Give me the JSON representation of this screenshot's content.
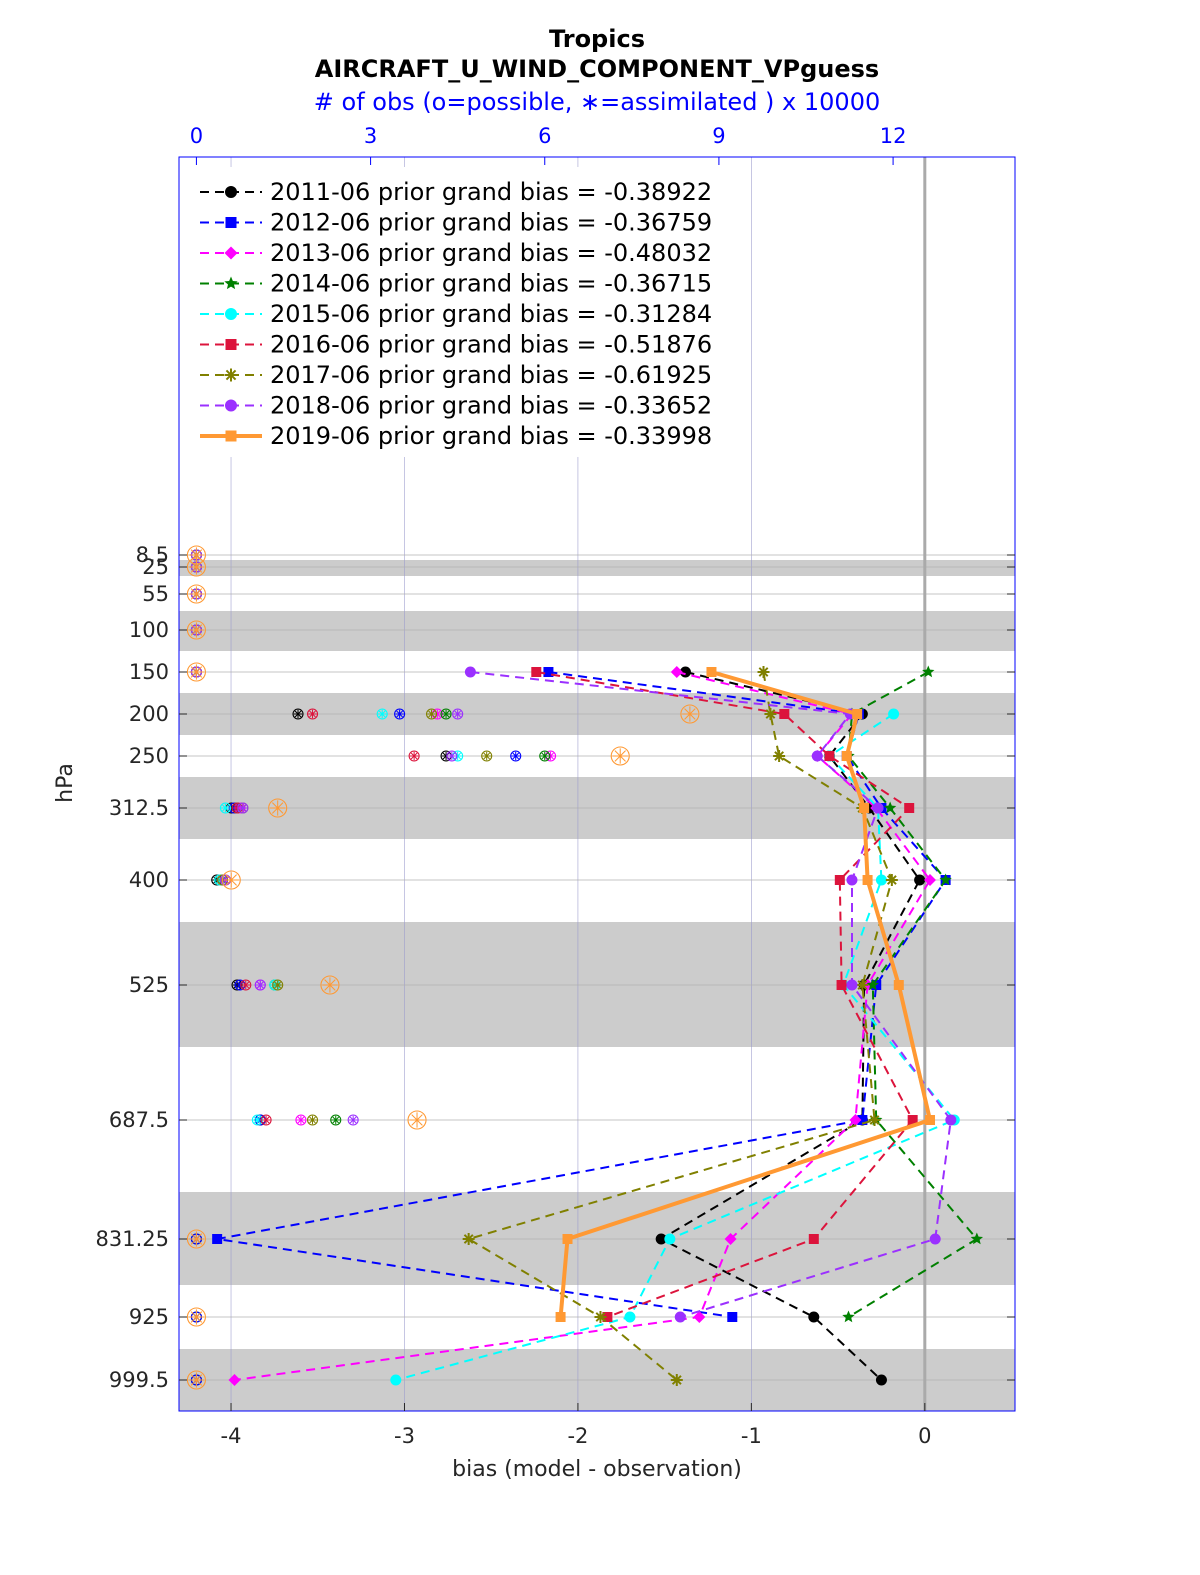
{
  "chart_data": {
    "type": "line",
    "title": "Tropics",
    "subtitle": "AIRCRAFT_U_WIND_COMPONENT_VPguess",
    "top_axis_label": "# of obs (o=possible, ∗=assimilated ) x 10000",
    "xlabel": "bias (model - observation)",
    "ylabel": "hPa",
    "xlim": [
      -4.3,
      0.52
    ],
    "x_ticks": [
      "-4",
      "-3",
      "-2",
      "-1",
      "0"
    ],
    "top_xlim": [
      -0.3,
      14.1
    ],
    "top_ticks": [
      "0",
      "3",
      "6",
      "9",
      "12"
    ],
    "levels": [
      "8.5",
      "25",
      "55",
      "100",
      "150",
      "200",
      "250",
      "312.5",
      "400",
      "525",
      "687.5",
      "831.25",
      "925",
      "999.5"
    ],
    "grid": true,
    "legend_position": "top-left",
    "series": [
      {
        "name": "2011-06 prior grand bias = -0.38922",
        "color": "#000000",
        "marker": "circle",
        "points": [
          [
            "150",
            -1.38
          ],
          [
            "200",
            -0.36
          ],
          [
            "250",
            -0.55
          ],
          [
            "312.5",
            -0.32
          ],
          [
            "400",
            -0.03
          ],
          [
            "525",
            -0.35
          ],
          [
            "687.5",
            -0.36
          ],
          [
            "831.25",
            -1.52
          ],
          [
            "925",
            -0.64
          ],
          [
            "999.5",
            -0.25
          ]
        ]
      },
      {
        "name": "2012-06 prior grand bias = -0.36759",
        "color": "#0000ff",
        "marker": "square",
        "points": [
          [
            "150",
            -2.17
          ],
          [
            "200",
            -0.38
          ],
          [
            "250",
            -0.45
          ],
          [
            "312.5",
            -0.25
          ],
          [
            "400",
            0.12
          ],
          [
            "525",
            -0.28
          ],
          [
            "687.5",
            -0.36
          ],
          [
            "831.25",
            -4.08
          ],
          [
            "925",
            -1.11
          ]
        ]
      },
      {
        "name": "2013-06 prior grand bias = -0.48032",
        "color": "#ff00ff",
        "marker": "diamond",
        "points": [
          [
            "150",
            -1.43
          ],
          [
            "200",
            -0.42
          ],
          [
            "250",
            -0.62
          ],
          [
            "312.5",
            -0.28
          ],
          [
            "400",
            0.03
          ],
          [
            "525",
            -0.33
          ],
          [
            "687.5",
            -0.4
          ],
          [
            "831.25",
            -1.12
          ],
          [
            "925",
            -1.3
          ],
          [
            "999.5",
            -3.98
          ]
        ]
      },
      {
        "name": "2014-06 prior grand bias = -0.36715",
        "color": "#008000",
        "marker": "star",
        "points": [
          [
            "150",
            0.02
          ],
          [
            "200",
            -0.42
          ],
          [
            "250",
            -0.44
          ],
          [
            "312.5",
            -0.2
          ],
          [
            "400",
            0.12
          ],
          [
            "525",
            -0.3
          ],
          [
            "687.5",
            -0.28
          ],
          [
            "831.25",
            0.3
          ],
          [
            "925",
            -0.44
          ]
        ]
      },
      {
        "name": "2015-06 prior grand bias = -0.31284",
        "color": "#00ffff",
        "marker": "circle",
        "points": [
          [
            "200",
            -0.18
          ],
          [
            "250",
            -0.55
          ],
          [
            "312.5",
            -0.27
          ],
          [
            "400",
            -0.25
          ],
          [
            "525",
            -0.47
          ],
          [
            "687.5",
            0.17
          ],
          [
            "831.25",
            -1.47
          ],
          [
            "925",
            -1.7
          ],
          [
            "999.5",
            -3.05
          ]
        ]
      },
      {
        "name": "2016-06 prior grand bias = -0.51876",
        "color": "#dc143c",
        "marker": "square",
        "points": [
          [
            "150",
            -2.24
          ],
          [
            "200",
            -0.81
          ],
          [
            "250",
            -0.55
          ],
          [
            "312.5",
            -0.09
          ],
          [
            "400",
            -0.49
          ],
          [
            "525",
            -0.48
          ],
          [
            "687.5",
            -0.07
          ],
          [
            "831.25",
            -0.64
          ],
          [
            "925",
            -1.83
          ]
        ]
      },
      {
        "name": "2017-06 prior grand bias = -0.61925",
        "color": "#808000",
        "marker": "asterisk",
        "points": [
          [
            "150",
            -0.93
          ],
          [
            "200",
            -0.89
          ],
          [
            "250",
            -0.84
          ],
          [
            "312.5",
            -0.36
          ],
          [
            "400",
            -0.19
          ],
          [
            "525",
            -0.36
          ],
          [
            "687.5",
            -0.29
          ],
          [
            "831.25",
            -2.63
          ],
          [
            "925",
            -1.87
          ],
          [
            "999.5",
            -1.43
          ]
        ]
      },
      {
        "name": "2018-06 prior grand bias = -0.33652",
        "color": "#9b30ff",
        "marker": "circle",
        "points": [
          [
            "150",
            -2.62
          ],
          [
            "200",
            -0.43
          ],
          [
            "250",
            -0.62
          ],
          [
            "312.5",
            -0.27
          ],
          [
            "400",
            -0.42
          ],
          [
            "525",
            -0.42
          ],
          [
            "687.5",
            0.15
          ],
          [
            "831.25",
            0.06
          ],
          [
            "925",
            -1.41
          ]
        ]
      },
      {
        "name": "2019-06 prior grand bias = -0.33998",
        "color": "#ff9933",
        "marker": "square",
        "bold": true,
        "points": [
          [
            "150",
            -1.23
          ],
          [
            "200",
            -0.39
          ],
          [
            "250",
            -0.45
          ],
          [
            "312.5",
            -0.35
          ],
          [
            "400",
            -0.33
          ],
          [
            "525",
            -0.15
          ],
          [
            "687.5",
            0.03
          ],
          [
            "831.25",
            -2.06
          ],
          [
            "925",
            -2.1
          ]
        ]
      }
    ],
    "obs_counts": [
      {
        "series": "2011-06",
        "color": "#000000",
        "counts": [
          [
            "8.5",
            0
          ],
          [
            "25",
            0
          ],
          [
            "55",
            0
          ],
          [
            "100",
            0
          ],
          [
            "150",
            0
          ],
          [
            "200",
            1.75
          ],
          [
            "250",
            4.3
          ],
          [
            "312.5",
            0.6
          ],
          [
            "400",
            0.35
          ],
          [
            "525",
            0.7
          ],
          [
            "687.5",
            1.1
          ],
          [
            "831.25",
            0
          ],
          [
            "925",
            0
          ],
          [
            "999.5",
            0
          ]
        ]
      },
      {
        "series": "2012-06",
        "color": "#0000ff",
        "counts": [
          [
            "8.5",
            0
          ],
          [
            "25",
            0
          ],
          [
            "55",
            0
          ],
          [
            "100",
            0
          ],
          [
            "150",
            0
          ],
          [
            "200",
            3.5
          ],
          [
            "250",
            5.5
          ],
          [
            "312.5",
            0.65
          ],
          [
            "400",
            0.4
          ],
          [
            "525",
            0.75
          ],
          [
            "687.5",
            1.1
          ],
          [
            "831.25",
            0
          ],
          [
            "925",
            0
          ],
          [
            "999.5",
            0
          ]
        ]
      },
      {
        "series": "2013-06",
        "color": "#ff00ff",
        "counts": [
          [
            "8.5",
            0
          ],
          [
            "25",
            0
          ],
          [
            "55",
            0
          ],
          [
            "100",
            0
          ],
          [
            "150",
            0
          ],
          [
            "200",
            4.15
          ],
          [
            "250",
            6.1
          ],
          [
            "312.5",
            0.75
          ],
          [
            "400",
            0.45
          ],
          [
            "525",
            1.1
          ],
          [
            "687.5",
            1.8
          ]
        ]
      },
      {
        "series": "2014-06",
        "color": "#008000",
        "counts": [
          [
            "8.5",
            0
          ],
          [
            "25",
            0
          ],
          [
            "55",
            0
          ],
          [
            "100",
            0
          ],
          [
            "150",
            0
          ],
          [
            "200",
            4.3
          ],
          [
            "250",
            6.0
          ],
          [
            "312.5",
            0.7
          ],
          [
            "400",
            0.4
          ],
          [
            "525",
            1.35
          ],
          [
            "687.5",
            2.4
          ]
        ]
      },
      {
        "series": "2015-06",
        "color": "#00ffff",
        "counts": [
          [
            "8.5",
            0
          ],
          [
            "25",
            0
          ],
          [
            "55",
            0
          ],
          [
            "100",
            0
          ],
          [
            "150",
            0
          ],
          [
            "200",
            3.2
          ],
          [
            "250",
            4.5
          ],
          [
            "312.5",
            0.5
          ],
          [
            "400",
            0.4
          ],
          [
            "525",
            1.35
          ],
          [
            "687.5",
            1.05
          ]
        ]
      },
      {
        "series": "2016-06",
        "color": "#dc143c",
        "counts": [
          [
            "8.5",
            0
          ],
          [
            "25",
            0
          ],
          [
            "55",
            0
          ],
          [
            "100",
            0
          ],
          [
            "150",
            0
          ],
          [
            "200",
            2.0
          ],
          [
            "250",
            3.75
          ],
          [
            "312.5",
            0.7
          ],
          [
            "400",
            0.5
          ],
          [
            "525",
            0.85
          ],
          [
            "687.5",
            1.2
          ]
        ]
      },
      {
        "series": "2017-06",
        "color": "#808000",
        "counts": [
          [
            "8.5",
            0
          ],
          [
            "25",
            0
          ],
          [
            "55",
            0
          ],
          [
            "100",
            0
          ],
          [
            "150",
            0
          ],
          [
            "200",
            4.05
          ],
          [
            "250",
            5.0
          ],
          [
            "312.5",
            0.8
          ],
          [
            "400",
            0.45
          ],
          [
            "525",
            1.4
          ],
          [
            "687.5",
            2.0
          ]
        ]
      },
      {
        "series": "2018-06",
        "color": "#9b30ff",
        "counts": [
          [
            "8.5",
            0
          ],
          [
            "25",
            0
          ],
          [
            "55",
            0
          ],
          [
            "100",
            0
          ],
          [
            "150",
            0
          ],
          [
            "200",
            4.5
          ],
          [
            "250",
            4.4
          ],
          [
            "312.5",
            0.8
          ],
          [
            "400",
            0.5
          ],
          [
            "525",
            1.1
          ],
          [
            "687.5",
            2.7
          ]
        ]
      },
      {
        "series": "2019-06",
        "color": "#ff9933",
        "counts": [
          [
            "8.5",
            0
          ],
          [
            "25",
            0
          ],
          [
            "55",
            0
          ],
          [
            "100",
            0
          ],
          [
            "150",
            0
          ],
          [
            "200",
            8.5
          ],
          [
            "250",
            7.3
          ],
          [
            "312.5",
            1.4
          ],
          [
            "400",
            0.6
          ],
          [
            "525",
            2.3
          ],
          [
            "687.5",
            3.8
          ],
          [
            "831.25",
            0
          ],
          [
            "925",
            0
          ],
          [
            "999.5",
            0
          ]
        ]
      }
    ]
  }
}
